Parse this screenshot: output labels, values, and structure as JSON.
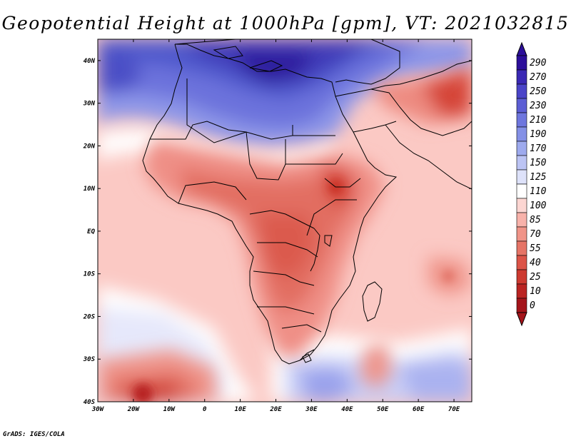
{
  "title": "Geopotential Height at 1000hPa [gpm], VT: 2021032815",
  "credit": "GrADS: IGES/COLA",
  "map": {
    "lon_labels": [
      "30W",
      "20W",
      "10W",
      "0",
      "10E",
      "20E",
      "30E",
      "40E",
      "50E",
      "60E",
      "70E"
    ],
    "lat_labels": [
      "40N",
      "30N",
      "20N",
      "10N",
      "EQ",
      "10S",
      "20S",
      "30S",
      "40S"
    ],
    "lon_range": [
      -30,
      75
    ],
    "lat_range": [
      -40,
      45
    ]
  },
  "colorbar": {
    "labels": [
      "290",
      "270",
      "250",
      "230",
      "210",
      "190",
      "170",
      "150",
      "125",
      "110",
      "100",
      "85",
      "70",
      "55",
      "40",
      "25",
      "10",
      "0"
    ],
    "colors": [
      "#2c0f9a",
      "#3a28b4",
      "#4a44c8",
      "#5c5ed4",
      "#6e76de",
      "#8490e6",
      "#9eaaee",
      "#bcc4f4",
      "#dee2fa",
      "#ffffff",
      "#fcd6d2",
      "#f8b2aa",
      "#f09488",
      "#e67466",
      "#dc5448",
      "#cd3a30",
      "#ba2422",
      "#a4141a"
    ],
    "top_color": "#2c0f9a",
    "bottom_color": "#a4141a"
  }
}
